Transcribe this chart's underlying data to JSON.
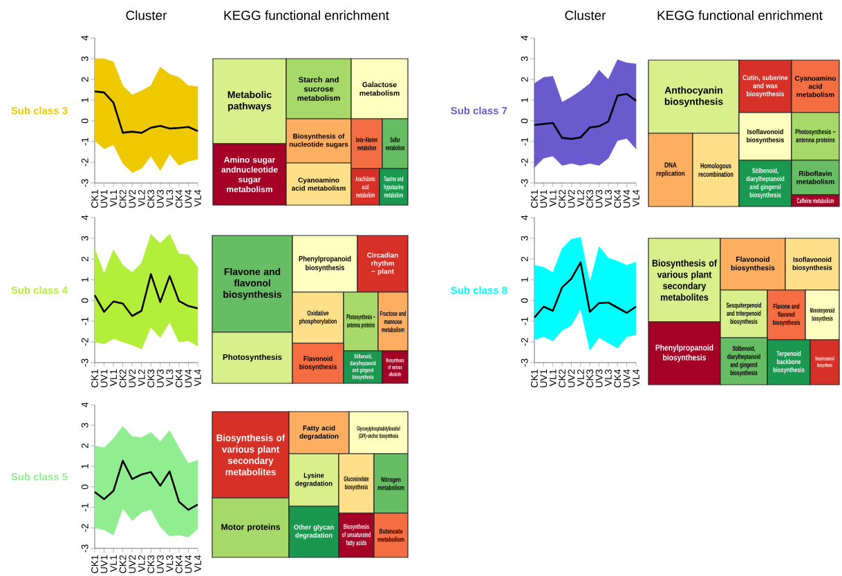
{
  "chart_data": [
    {
      "type": "line",
      "title": "Cluster",
      "ylabel": "Sub class 3",
      "color": "#eec900",
      "categories": [
        "CK1",
        "UV1",
        "VL1",
        "CK2",
        "UV2",
        "VL2",
        "CK3",
        "UV3",
        "VL3",
        "CK4",
        "UV4",
        "VL4"
      ],
      "ylim": [
        -3,
        4
      ],
      "yticks": [
        -3,
        -2,
        -1,
        0,
        1,
        2,
        3,
        4
      ],
      "series": [
        {
          "color": "#000000",
          "values": [
            1.42,
            1.37,
            0.88,
            -0.57,
            -0.52,
            -0.58,
            -0.33,
            -0.24,
            -0.37,
            -0.34,
            -0.29,
            -0.49
          ],
          "lower": [
            -0.95,
            -1.35,
            -1.15,
            -2.05,
            -2.5,
            -2.3,
            -1.7,
            -2.4,
            -1.6,
            -2.15,
            -1.95,
            -1.85
          ],
          "upper": [
            3.0,
            3.0,
            2.85,
            1.7,
            1.25,
            1.45,
            1.7,
            2.6,
            2.25,
            2.1,
            1.7,
            1.65
          ]
        }
      ]
    },
    {
      "type": "other",
      "title": "KEGG functional enrichment",
      "categories": [
        "Metabolic pathways",
        "Amino sugar andnucleotide sugar metabolism",
        "Starch and sucrose metabolism",
        "Galactose metabolism",
        "Biosynthesis of nucleotide sugars",
        "Cyanoamino acid metabolism",
        "beta−Alanine metabolism",
        "Sulfur metabolism",
        "Arachidonic acid metabolism",
        "Taurine and hypotaurine metabolism"
      ],
      "colors": [
        "#d9ef8b",
        "#a50026",
        "#a6d96a",
        "#ffffbf",
        "#fdae61",
        "#fee08b",
        "#f46d43",
        "#66bd63",
        "#d73027",
        "#1a9850"
      ]
    },
    {
      "type": "line",
      "title": "Cluster",
      "ylabel": "Sub class 7",
      "color": "#6a5acd",
      "categories": [
        "CK1",
        "UV1",
        "VL1",
        "CK2",
        "UV2",
        "VL2",
        "CK3",
        "UV3",
        "VL3",
        "CK4",
        "UV4",
        "VL4"
      ],
      "ylim": [
        -3,
        4
      ],
      "yticks": [
        -3,
        -2,
        -1,
        0,
        1,
        2,
        3,
        4
      ],
      "series": [
        {
          "color": "#000000",
          "values": [
            -0.2,
            -0.15,
            -0.1,
            -0.82,
            -0.87,
            -0.8,
            -0.32,
            -0.26,
            -0.03,
            1.22,
            1.3,
            0.97
          ],
          "lower": [
            -2.25,
            -1.8,
            -1.7,
            -2.15,
            -2.05,
            -2.15,
            -2.05,
            -2.15,
            -1.8,
            -0.95,
            -0.85,
            -1.35
          ],
          "upper": [
            1.8,
            2.1,
            2.15,
            0.9,
            1.15,
            1.45,
            1.8,
            2.45,
            2.0,
            2.95,
            2.8,
            2.75
          ]
        }
      ]
    },
    {
      "type": "other",
      "title": "KEGG functional enrichment",
      "categories": [
        "Anthocyanin biosynthesis",
        "DNA replication",
        "Homologous recombination",
        "Cutin, suberine and wax biosynthesis",
        "Cyanoamino acid metabolism",
        "Isoflavonoid biosynthesis",
        "Photosynthesis − antenna proteins",
        "Stilbenoid, diarylheptanoid and gingerol biosynthesis",
        "Riboflavin metabolism",
        "Caffeine metabolism"
      ],
      "colors": [
        "#d9ef8b",
        "#fdae61",
        "#fee08b",
        "#d73027",
        "#f46d43",
        "#ffffbf",
        "#a6d96a",
        "#1a9850",
        "#66bd63",
        "#a50026"
      ]
    },
    {
      "type": "line",
      "ylabel": "Sub class 4",
      "color": "#b3ee3a",
      "categories": [
        "CK1",
        "UV1",
        "VL1",
        "CK2",
        "UV2",
        "VL2",
        "CK3",
        "UV3",
        "VL3",
        "CK4",
        "UV4",
        "VL4"
      ],
      "ylim": [
        -3,
        4
      ],
      "yticks": [
        -3,
        -2,
        -1,
        0,
        1,
        2,
        3,
        4
      ],
      "series": [
        {
          "color": "#000000",
          "values": [
            0.25,
            -0.55,
            -0.05,
            -0.15,
            -0.75,
            -0.5,
            1.27,
            -0.08,
            1.18,
            -0.03,
            -0.27,
            -0.38
          ],
          "lower": [
            -2.0,
            -2.1,
            -1.85,
            -2.0,
            -2.15,
            -2.35,
            -1.3,
            -1.8,
            -1.05,
            -2.0,
            -1.95,
            -2.2
          ],
          "upper": [
            2.5,
            1.3,
            2.45,
            1.7,
            1.35,
            1.8,
            3.2,
            2.75,
            3.2,
            2.25,
            2.2,
            1.6
          ]
        }
      ]
    },
    {
      "type": "other",
      "categories": [
        "Flavone and flavonol biosynthesis",
        "Photosynthesis",
        "Phenylpropanoid biosynthesis",
        "Circadian rhythm − plant",
        "Oxidative phosphorylation",
        "Photosynthesis − antenna proteins",
        "Fructose and mannose metabolism",
        "Flavonoid biosynthesis",
        "Stilbenoid, diarylheptanoid and gingerol biosynthesis",
        "Biosynthesis of various alkaloids"
      ],
      "colors": [
        "#66bd63",
        "#d9ef8b",
        "#ffffbf",
        "#d73027",
        "#fee08b",
        "#a6d96a",
        "#fdae61",
        "#f46d43",
        "#1a9850",
        "#a50026"
      ]
    },
    {
      "type": "line",
      "ylabel": "Sub class 8",
      "color": "#00ffff",
      "categories": [
        "CK1",
        "UV1",
        "VL1",
        "CK2",
        "UV2",
        "VL2",
        "CK3",
        "UV3",
        "VL3",
        "CK4",
        "UV4",
        "VL4"
      ],
      "ylim": [
        -3,
        4
      ],
      "yticks": [
        -3,
        -2,
        -1,
        0,
        1,
        2,
        3,
        4
      ],
      "series": [
        {
          "color": "#000000",
          "values": [
            -0.83,
            -0.3,
            -0.5,
            0.63,
            1.05,
            1.84,
            -0.55,
            -0.13,
            -0.1,
            -0.35,
            -0.6,
            -0.3
          ],
          "lower": [
            -1.9,
            -1.75,
            -1.95,
            -1.45,
            -1.2,
            -0.4,
            -2.4,
            -1.8,
            -2.05,
            -2.3,
            -1.75,
            -1.65
          ],
          "upper": [
            1.7,
            1.6,
            1.35,
            2.5,
            2.95,
            3.05,
            0.85,
            2.6,
            2.05,
            1.9,
            1.7,
            1.85
          ]
        }
      ]
    },
    {
      "type": "other",
      "categories": [
        "Biosynthesis of various plant secondary metabolites",
        "Phenylpropanoid biosynthesis",
        "Flavonoid biosynthesis",
        "Isoflavonoid biosynthesis",
        "Sesquiterpenoid and triterpenoid biosynthesis",
        "Flavone and flavonol biosynthesis",
        "Monoterpenoid biosynthesis",
        "Stilbenoid, diarylheptanoid and gingerol biosynthesis",
        "Terpenoid backbone biosynthesis",
        "Brassinosteroid biosynthesis"
      ],
      "colors": [
        "#d9ef8b",
        "#a50026",
        "#fdae61",
        "#fee08b",
        "#d9ef8b",
        "#f46d43",
        "#ffffbf",
        "#66bd63",
        "#1a9850",
        "#d73027"
      ]
    },
    {
      "type": "line",
      "ylabel": "Sub class 5",
      "color": "#90ee90",
      "categories": [
        "CK1",
        "UV1",
        "VL1",
        "CK2",
        "UV2",
        "VL2",
        "CK3",
        "UV3",
        "VL3",
        "CK4",
        "UV4",
        "VL4"
      ],
      "ylim": [
        -3,
        4
      ],
      "yticks": [
        -3,
        -2,
        -1,
        0,
        1,
        2,
        3,
        4
      ],
      "series": [
        {
          "color": "#000000",
          "values": [
            -0.25,
            -0.6,
            -0.2,
            1.27,
            0.38,
            0.6,
            0.72,
            0.05,
            0.75,
            -0.73,
            -1.12,
            -0.87
          ],
          "lower": [
            -2.0,
            -2.1,
            -2.35,
            -1.05,
            -1.65,
            -1.25,
            -1.1,
            -1.95,
            -2.4,
            -2.35,
            -2.45,
            -2.05
          ],
          "upper": [
            2.0,
            1.9,
            2.35,
            2.95,
            2.45,
            2.4,
            2.65,
            2.2,
            2.75,
            1.9,
            1.15,
            1.3
          ]
        }
      ]
    },
    {
      "type": "other",
      "categories": [
        "Biosynthesis of various plant secondary metabolites",
        "Motor proteins",
        "Fatty acid degradation",
        "Glycosylphosphatidylinositol (GPI)−anchor biosynthesis",
        "Lysine degradation",
        "Glucosinolate biosynthesis",
        "Nitrogen metabolism",
        "Other glycan degradation",
        "Biosynthesis of unsaturated fatty acids",
        "Butanoate metabolism"
      ],
      "colors": [
        "#d73027",
        "#a6d96a",
        "#fdae61",
        "#ffffbf",
        "#d9ef8b",
        "#fee08b",
        "#66bd63",
        "#1a9850",
        "#a50026",
        "#f46d43"
      ]
    }
  ]
}
